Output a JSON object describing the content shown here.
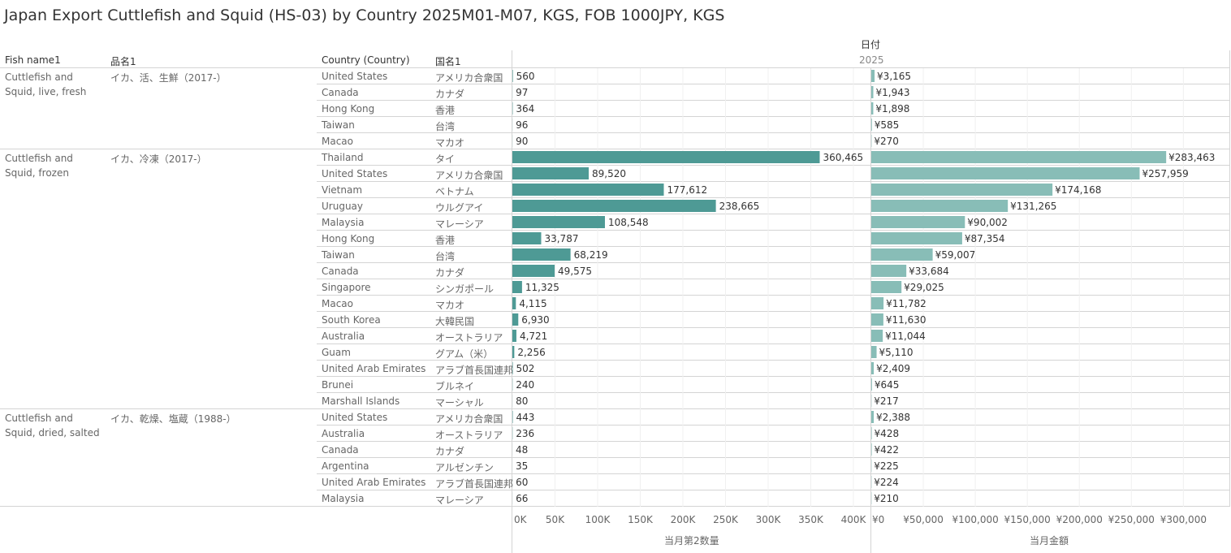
{
  "title": "Japan Export Cuttlefish and Squid (HS-03) by Country 2025M01-M07, KGS, FOB 1000JPY, KGS",
  "headers": {
    "fish_name": "Fish name1",
    "hinmei": "品名1",
    "country": "Country (Country)",
    "kokumei": "国名1",
    "date": "日付",
    "year": "2025"
  },
  "groups": [
    {
      "fish": "Cuttlefish and Squid, live, fresh",
      "hinmei": "イカ、活、生鮮（2017-）",
      "rows": 5
    },
    {
      "fish": "Cuttlefish and Squid, frozen",
      "hinmei": "イカ、冷凍（2017-）",
      "rows": 16
    },
    {
      "fish": "Cuttlefish and Squid, dried, salted",
      "hinmei": "イカ、乾燥、塩蔵（1988-）",
      "rows": 6
    }
  ],
  "rows": [
    {
      "country": "United States",
      "kokumei": "アメリカ合衆国",
      "qty_label": "560",
      "val_label": "¥3,165"
    },
    {
      "country": "Canada",
      "kokumei": "カナダ",
      "qty_label": "97",
      "val_label": "¥1,943"
    },
    {
      "country": "Hong Kong",
      "kokumei": "香港",
      "qty_label": "364",
      "val_label": "¥1,898"
    },
    {
      "country": "Taiwan",
      "kokumei": "台湾",
      "qty_label": "96",
      "val_label": "¥585"
    },
    {
      "country": "Macao",
      "kokumei": "マカオ",
      "qty_label": "90",
      "val_label": "¥270"
    },
    {
      "country": "Thailand",
      "kokumei": "タイ",
      "qty_label": "360,465",
      "val_label": "¥283,463"
    },
    {
      "country": "United States",
      "kokumei": "アメリカ合衆国",
      "qty_label": "89,520",
      "val_label": "¥257,959"
    },
    {
      "country": "Vietnam",
      "kokumei": "ベトナム",
      "qty_label": "177,612",
      "val_label": "¥174,168"
    },
    {
      "country": "Uruguay",
      "kokumei": "ウルグアイ",
      "qty_label": "238,665",
      "val_label": "¥131,265"
    },
    {
      "country": "Malaysia",
      "kokumei": "マレーシア",
      "qty_label": "108,548",
      "val_label": "¥90,002"
    },
    {
      "country": "Hong Kong",
      "kokumei": "香港",
      "qty_label": "33,787",
      "val_label": "¥87,354"
    },
    {
      "country": "Taiwan",
      "kokumei": "台湾",
      "qty_label": "68,219",
      "val_label": "¥59,007"
    },
    {
      "country": "Canada",
      "kokumei": "カナダ",
      "qty_label": "49,575",
      "val_label": "¥33,684"
    },
    {
      "country": "Singapore",
      "kokumei": "シンガポール",
      "qty_label": "11,325",
      "val_label": "¥29,025"
    },
    {
      "country": "Macao",
      "kokumei": "マカオ",
      "qty_label": "4,115",
      "val_label": "¥11,782"
    },
    {
      "country": "South Korea",
      "kokumei": "大韓民国",
      "qty_label": "6,930",
      "val_label": "¥11,630"
    },
    {
      "country": "Australia",
      "kokumei": "オーストラリア",
      "qty_label": "4,721",
      "val_label": "¥11,044"
    },
    {
      "country": "Guam",
      "kokumei": "グアム（米）",
      "qty_label": "2,256",
      "val_label": "¥5,110"
    },
    {
      "country": "United Arab Emirates",
      "kokumei": "アラブ首長国連邦",
      "qty_label": "502",
      "val_label": "¥2,409"
    },
    {
      "country": "Brunei",
      "kokumei": "ブルネイ",
      "qty_label": "240",
      "val_label": "¥645"
    },
    {
      "country": "Marshall Islands",
      "kokumei": "マーシャル",
      "qty_label": "80",
      "val_label": "¥217"
    },
    {
      "country": "United States",
      "kokumei": "アメリカ合衆国",
      "qty_label": "443",
      "val_label": "¥2,388"
    },
    {
      "country": "Australia",
      "kokumei": "オーストラリア",
      "qty_label": "236",
      "val_label": "¥428"
    },
    {
      "country": "Canada",
      "kokumei": "カナダ",
      "qty_label": "48",
      "val_label": "¥422"
    },
    {
      "country": "Argentina",
      "kokumei": "アルゼンチン",
      "qty_label": "35",
      "val_label": "¥225"
    },
    {
      "country": "United Arab Emirates",
      "kokumei": "アラブ首長国連邦",
      "qty_label": "60",
      "val_label": "¥224"
    },
    {
      "country": "Malaysia",
      "kokumei": "マレーシア",
      "qty_label": "66",
      "val_label": "¥210"
    }
  ],
  "chart_data": [
    {
      "type": "bar",
      "orientation": "horizontal",
      "xlabel": "当月第2数量",
      "xlim": [
        0,
        420000
      ],
      "ticks": [
        "0K",
        "50K",
        "100K",
        "150K",
        "200K",
        "250K",
        "300K",
        "350K",
        "400K"
      ],
      "values": [
        560,
        97,
        364,
        96,
        90,
        360465,
        89520,
        177612,
        238665,
        108548,
        33787,
        68219,
        49575,
        11325,
        4115,
        6930,
        4721,
        2256,
        502,
        240,
        80,
        443,
        236,
        48,
        35,
        60,
        66
      ],
      "color": "#4e9a95"
    },
    {
      "type": "bar",
      "orientation": "horizontal",
      "xlabel": "当月金額",
      "xlim": [
        0,
        345000
      ],
      "ticks": [
        "¥0",
        "¥50,000",
        "¥100,000",
        "¥150,000",
        "¥200,000",
        "¥250,000",
        "¥300,000"
      ],
      "values": [
        3165,
        1943,
        1898,
        585,
        270,
        283463,
        257959,
        174168,
        131265,
        90002,
        87354,
        59007,
        33684,
        29025,
        11782,
        11630,
        11044,
        5110,
        2409,
        645,
        217,
        2388,
        428,
        422,
        225,
        224,
        210
      ],
      "color": "#88bdb7"
    }
  ]
}
